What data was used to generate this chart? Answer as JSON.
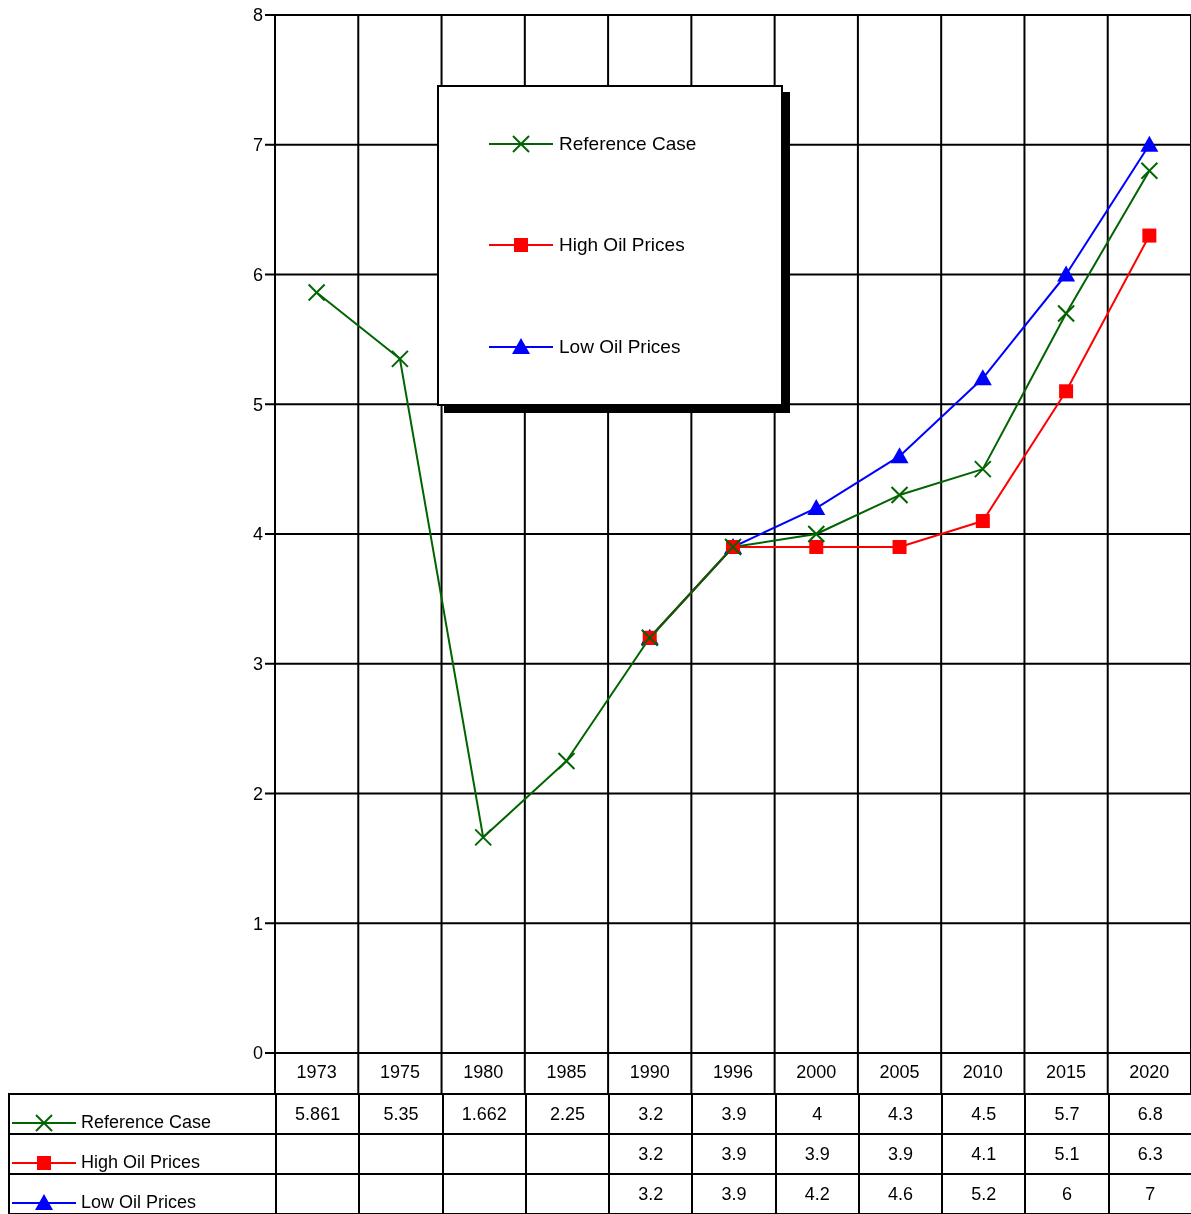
{
  "chart_data": {
    "type": "line",
    "categories": [
      "1973",
      "1975",
      "1980",
      "1985",
      "1990",
      "1996",
      "2000",
      "2005",
      "2010",
      "2015",
      "2020"
    ],
    "series": [
      {
        "name": "Reference Case",
        "color": "#006400",
        "marker": "cross",
        "values": [
          5.861,
          5.35,
          1.662,
          2.25,
          3.2,
          3.9,
          4,
          4.3,
          4.5,
          5.7,
          6.8
        ]
      },
      {
        "name": "High Oil Prices",
        "color": "#ff0000",
        "marker": "square",
        "values": [
          null,
          null,
          null,
          null,
          3.2,
          3.9,
          3.9,
          3.9,
          4.1,
          5.1,
          6.3
        ]
      },
      {
        "name": "Low Oil Prices",
        "color": "#0000ff",
        "marker": "triangle",
        "values": [
          null,
          null,
          null,
          null,
          3.2,
          3.9,
          4.2,
          4.6,
          5.2,
          6,
          7
        ]
      }
    ],
    "ylim": [
      0,
      8
    ],
    "yticks": [
      0,
      1,
      2,
      3,
      4,
      5,
      6,
      7,
      8
    ],
    "grid": true,
    "legend": "top",
    "data_labels": true
  }
}
